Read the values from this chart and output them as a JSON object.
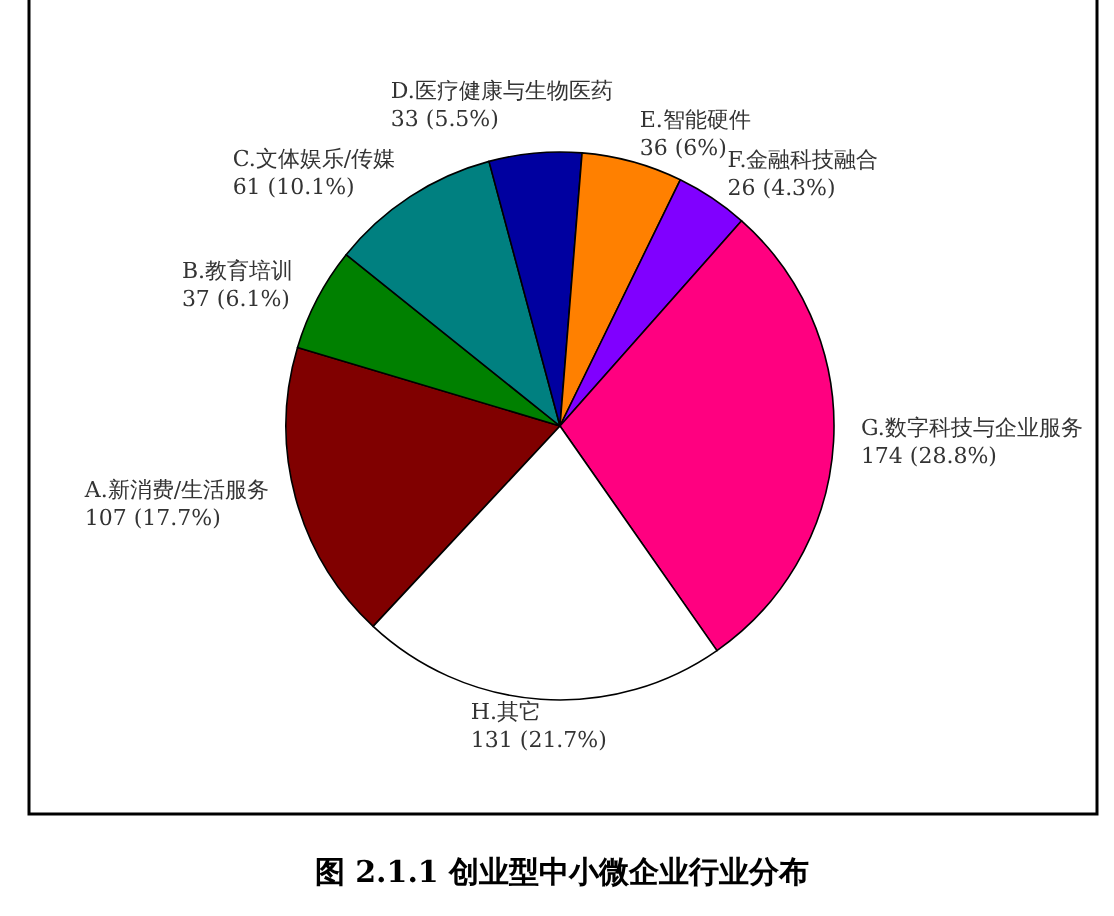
{
  "chart_data": {
    "type": "pie",
    "title": "图 2.1.1 创业型中小微企业行业分布",
    "categories": [
      "A.新消费/生活服务",
      "B.教育培训",
      "C.文体娱乐/传媒",
      "D.医疗健康与生物医药",
      "E.智能硬件",
      "F.金融科技融合",
      "G.数字科技与企业服务",
      "H.其它"
    ],
    "values": [
      107,
      37,
      61,
      33,
      36,
      26,
      174,
      131
    ],
    "value_labels": [
      "107 (17.7%)",
      "37 (6.1%)",
      "61 (10.1%)",
      "33 (5.5%)",
      "36 (6%)",
      "26 (4.3%)",
      "174 (28.8%)",
      "131 (21.7%)"
    ],
    "colors": [
      "#800000",
      "#008000",
      "#008080",
      "#0000a0",
      "#ff8000",
      "#8000ff",
      "#ff0080",
      "#ffffff"
    ]
  }
}
